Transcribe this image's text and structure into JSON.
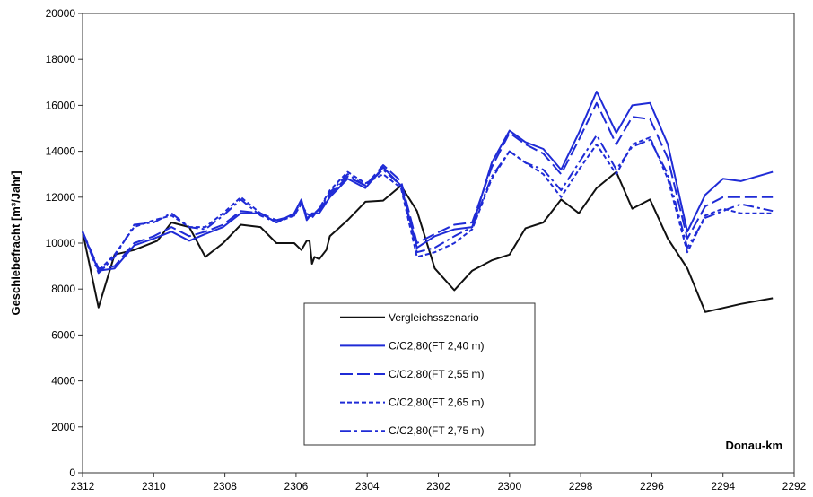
{
  "chart_data": {
    "type": "line",
    "ylabel": "Geschiebefracht [m³/Jahr]",
    "xlabel": "Donau-km",
    "xlim": [
      2312,
      2292
    ],
    "xticks": [
      2312,
      2310,
      2308,
      2306,
      2304,
      2302,
      2300,
      2298,
      2296,
      2294,
      2292
    ],
    "ylim": [
      0,
      20000
    ],
    "yticks": [
      0,
      2000,
      4000,
      6000,
      8000,
      10000,
      12000,
      14000,
      16000,
      18000,
      20000
    ],
    "grid": false,
    "series": [
      {
        "name": "Vergleichsszenario",
        "color": "#111111",
        "dash": "none",
        "x": [
          2312,
          2311.55,
          2311.1,
          2310.55,
          2309.9,
          2309.5,
          2309,
          2308.55,
          2308.05,
          2307.55,
          2307,
          2306.55,
          2306.05,
          2305.85,
          2305.7,
          2305.62,
          2305.55,
          2305.48,
          2305.35,
          2305.15,
          2305.05,
          2304.55,
          2304.05,
          2303.55,
          2303.05,
          2302.6,
          2302.1,
          2301.55,
          2301.05,
          2300.5,
          2300,
          2299.55,
          2299.05,
          2298.55,
          2298.05,
          2297.55,
          2297,
          2296.55,
          2296.05,
          2295.55,
          2295,
          2294.5,
          2293.5,
          2292.6
        ],
        "values": [
          10500,
          7200,
          9500,
          9700,
          10100,
          10900,
          10700,
          9400,
          10000,
          10800,
          10700,
          10000,
          10000,
          9700,
          10100,
          10100,
          9100,
          9400,
          9300,
          9700,
          10300,
          11000,
          11800,
          11850,
          12500,
          11400,
          8900,
          7950,
          8800,
          9250,
          9500,
          10650,
          10900,
          11900,
          11300,
          12400,
          13100,
          11500,
          11900,
          10200,
          8900,
          7000,
          7350,
          7600
        ]
      },
      {
        "name": "C/C2,80(FT 2,40 m)",
        "color": "#1f2bd6",
        "dash": "none",
        "x": [
          2312,
          2311.55,
          2311.1,
          2310.55,
          2310,
          2309.5,
          2309,
          2308.55,
          2308.05,
          2307.55,
          2307,
          2306.55,
          2306.05,
          2305.85,
          2305.7,
          2305.55,
          2305.35,
          2305.05,
          2304.55,
          2304.05,
          2303.55,
          2303.05,
          2302.6,
          2302.1,
          2301.55,
          2301.05,
          2300.5,
          2300,
          2299.55,
          2299.05,
          2298.55,
          2298.05,
          2297.55,
          2297,
          2296.55,
          2296.05,
          2295.55,
          2295,
          2294.5,
          2294,
          2293.5,
          2292.6
        ],
        "values": [
          10500,
          8800,
          8900,
          9900,
          10200,
          10500,
          10100,
          10400,
          10700,
          11300,
          11300,
          10900,
          11300,
          11900,
          11000,
          11300,
          11300,
          12000,
          12800,
          12400,
          13300,
          12500,
          9800,
          10300,
          10600,
          10700,
          13500,
          14900,
          14400,
          14100,
          13200,
          14800,
          16600,
          14800,
          16000,
          16100,
          14300,
          10500,
          12100,
          12800,
          12700,
          13100
        ]
      },
      {
        "name": "C/C2,80(FT 2,55 m)",
        "color": "#1f2bd6",
        "dash": "14,5",
        "x": [
          2312,
          2311.55,
          2311.1,
          2310.55,
          2310,
          2309.5,
          2309,
          2308.55,
          2308.05,
          2307.55,
          2307,
          2306.55,
          2306.05,
          2305.85,
          2305.7,
          2305.55,
          2305.35,
          2305.05,
          2304.55,
          2304.05,
          2303.55,
          2303.05,
          2302.6,
          2302.1,
          2301.55,
          2301.05,
          2300.5,
          2300,
          2299.55,
          2299.05,
          2298.55,
          2298.05,
          2297.55,
          2297,
          2296.55,
          2296.05,
          2295.55,
          2295,
          2294.5,
          2294,
          2293.5,
          2292.6
        ],
        "values": [
          10500,
          8900,
          9000,
          10000,
          10300,
          10700,
          10300,
          10500,
          10800,
          11400,
          11300,
          11000,
          11200,
          11800,
          11100,
          11200,
          11400,
          12100,
          12900,
          12500,
          13400,
          12700,
          10000,
          10400,
          10800,
          10900,
          13300,
          14800,
          14300,
          13900,
          13000,
          14500,
          16100,
          14300,
          15500,
          15400,
          13700,
          10200,
          11600,
          12000,
          12000,
          12000
        ]
      },
      {
        "name": "C/C2,80(FT 2,65 m)",
        "color": "#1f2bd6",
        "dash": "5,3",
        "x": [
          2312,
          2311.55,
          2311.1,
          2310.55,
          2310,
          2309.5,
          2309,
          2308.55,
          2308.05,
          2307.55,
          2307,
          2306.55,
          2306.05,
          2305.85,
          2305.7,
          2305.55,
          2305.35,
          2305.05,
          2304.55,
          2304.05,
          2303.55,
          2303.05,
          2302.6,
          2302.1,
          2301.55,
          2301.05,
          2300.5,
          2300,
          2299.55,
          2299.05,
          2298.55,
          2298.05,
          2297.55,
          2297,
          2296.55,
          2296.05,
          2295.55,
          2295,
          2294.5,
          2294,
          2293.5,
          2292.6
        ],
        "values": [
          10500,
          8800,
          9500,
          10700,
          11000,
          11200,
          10700,
          10700,
          11300,
          12000,
          11300,
          10900,
          11200,
          11700,
          11300,
          11100,
          11500,
          12300,
          13100,
          12600,
          13000,
          12400,
          9400,
          9600,
          10000,
          10600,
          12800,
          14000,
          13500,
          13000,
          12000,
          13200,
          14300,
          13000,
          14300,
          14600,
          12800,
          9600,
          11200,
          11500,
          11300,
          11300
        ]
      },
      {
        "name": "C/C2,80(FT 2,75 m)",
        "color": "#1f2bd6",
        "dash": "12,4,3,4",
        "x": [
          2312,
          2311.55,
          2311.1,
          2310.55,
          2310,
          2309.5,
          2309,
          2308.55,
          2308.05,
          2307.55,
          2307,
          2306.55,
          2306.05,
          2305.85,
          2305.7,
          2305.55,
          2305.35,
          2305.05,
          2304.55,
          2304.05,
          2303.55,
          2303.05,
          2302.6,
          2302.1,
          2301.55,
          2301.05,
          2300.5,
          2300,
          2299.55,
          2299.05,
          2298.55,
          2298.05,
          2297.55,
          2297,
          2296.55,
          2296.05,
          2295.55,
          2295,
          2294.5,
          2294,
          2293.5,
          2292.6
        ],
        "values": [
          10500,
          8700,
          9400,
          10800,
          10900,
          11300,
          10700,
          10600,
          11200,
          11900,
          11200,
          10900,
          11300,
          11800,
          11200,
          11200,
          11500,
          12200,
          13000,
          12500,
          13200,
          12500,
          9600,
          9800,
          10300,
          10700,
          12900,
          14000,
          13500,
          13200,
          12300,
          13500,
          14700,
          13200,
          14200,
          14500,
          13000,
          9800,
          11100,
          11400,
          11700,
          11400
        ]
      }
    ]
  }
}
